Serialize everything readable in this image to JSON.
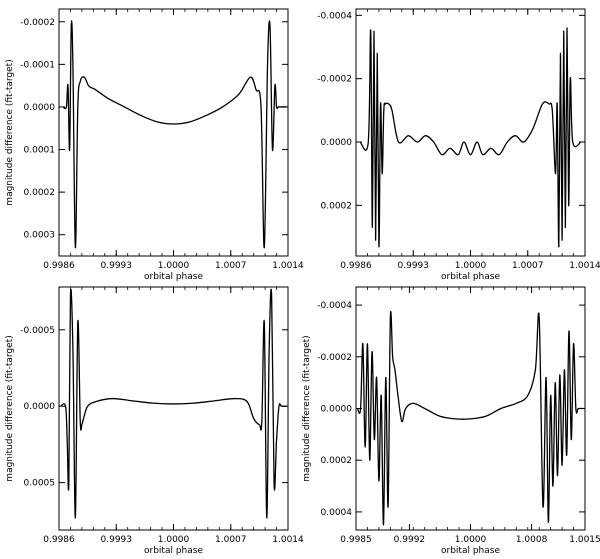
{
  "chart_data": [
    {
      "type": "line",
      "xlabel": "orbital phase",
      "ylabel": "magnitude difference (fit-target)",
      "xlim": [
        0.9986,
        1.0014
      ],
      "ylim": [
        0.00035,
        -0.00023
      ],
      "y_inverted": true,
      "xticks": [
        "0.9986",
        "0.9993",
        "1.0000",
        "1.0007",
        "1.0014"
      ],
      "xtick_values": [
        0.9986,
        0.9993,
        1.0,
        1.0007,
        1.0014
      ],
      "yticks": [
        "-0.0002",
        "-0.0001",
        "0.0000",
        "0.0001",
        "0.0002",
        "0.0003"
      ],
      "ytick_values": [
        -0.0002,
        -0.0001,
        0.0,
        0.0001,
        0.0002,
        0.0003
      ],
      "series": [
        {
          "x": [
            0.99865,
            0.99869,
            0.99871,
            0.99873,
            0.99875,
            0.99877,
            0.9988,
            0.99883,
            0.99886,
            0.99891,
            0.99896,
            0.999,
            0.99905,
            0.9992,
            0.9994,
            0.9996,
            0.9998,
            1.0,
            1.0002,
            1.0004,
            1.0006,
            1.0008,
            1.00094,
            1.00101,
            1.00107,
            1.00111,
            1.00115,
            1.00118,
            1.00121,
            1.00124,
            1.00126,
            1.00128,
            1.0013,
            1.00133,
            1.00138
          ],
          "y": [
            0.0,
            0.0,
            -5e-05,
            0.0001,
            -0.00019,
            -0.0001,
            0.00033,
            0.0,
            -6e-05,
            -7e-05,
            -5e-05,
            -4.5e-05,
            -4e-05,
            -2e-05,
            0.0,
            2e-05,
            3.5e-05,
            4e-05,
            3.5e-05,
            2e-05,
            0.0,
            -3e-05,
            -7e-05,
            -4e-05,
            0.0,
            0.00033,
            -0.0001,
            -0.00019,
            0.0001,
            -5e-05,
            0.0,
            0.0,
            0.0,
            0.0,
            0.0
          ]
        }
      ]
    },
    {
      "type": "line",
      "xlabel": "orbital phase",
      "ylabel": "",
      "xlim": [
        0.9986,
        1.0014
      ],
      "ylim": [
        0.00036,
        -0.00042
      ],
      "y_inverted": true,
      "xticks": [
        "0.9986",
        "0.9993",
        "1.0000",
        "1.0007",
        "1.0014"
      ],
      "xtick_values": [
        0.9986,
        0.9993,
        1.0,
        1.0007,
        1.0014
      ],
      "yticks": [
        "-0.0004",
        "-0.0002",
        "0.0000",
        "0.0002"
      ],
      "ytick_values": [
        -0.0004,
        -0.0002,
        0.0,
        0.0002
      ],
      "series": [
        {
          "x": [
            0.99865,
            0.99875,
            0.99878,
            0.9988,
            0.99882,
            0.99884,
            0.99886,
            0.99888,
            0.9989,
            0.99892,
            0.99894,
            0.99896,
            0.999,
            0.99904,
            0.99912,
            0.99924,
            0.99935,
            0.99945,
            0.99955,
            0.99965,
            0.99975,
            0.99985,
            0.99992,
            1.0,
            1.00008,
            1.00015,
            1.00025,
            1.00035,
            1.00045,
            1.00055,
            1.00065,
            1.00076,
            1.00088,
            1.00096,
            1.001,
            1.00104,
            1.00106,
            1.00108,
            1.0011,
            1.00112,
            1.00114,
            1.00116,
            1.00118,
            1.0012,
            1.00122,
            1.00125,
            1.00135
          ],
          "y": [
            0.0,
            0.0,
            -0.00035,
            0.00027,
            -0.00035,
            0.00031,
            -0.00028,
            0.00033,
            -0.00012,
            0.0001,
            -0.0001,
            -0.00012,
            -0.00012,
            -0.0001,
            0.0,
            -2e-05,
            0.0,
            -2e-05,
            0.0,
            4e-05,
            2e-05,
            4e-05,
            0.0,
            4e-05,
            0.0,
            4e-05,
            2e-05,
            4e-05,
            0.0,
            -2e-05,
            0.0,
            -4e-05,
            -0.00012,
            -0.00012,
            -0.0001,
            0.0001,
            -0.00012,
            0.00033,
            -0.00028,
            0.00031,
            -0.00035,
            0.00027,
            -0.00036,
            0.0002,
            -0.0002,
            0.0,
            0.0
          ]
        }
      ]
    },
    {
      "type": "line",
      "xlabel": "orbital phase",
      "ylabel": "magnitude difference (fit-target)",
      "xlim": [
        0.9986,
        1.0014
      ],
      "ylim": [
        0.00081,
        -0.00078
      ],
      "y_inverted": true,
      "xticks": [
        "0.9986",
        "0.9993",
        "1.0000",
        "1.0007",
        "1.0014"
      ],
      "xtick_values": [
        0.9986,
        0.9993,
        1.0,
        1.0007,
        1.0014
      ],
      "yticks": [
        "-0.0005",
        "0.0000",
        "0.0005"
      ],
      "ytick_values": [
        -0.0005,
        0.0,
        0.0005
      ],
      "series": [
        {
          "x": [
            0.99862,
            0.99868,
            0.9987,
            0.99872,
            0.99874,
            0.99877,
            0.9988,
            0.99883,
            0.99886,
            0.99888,
            0.9989,
            0.99895,
            0.99905,
            0.99925,
            0.9995,
            0.99975,
            1.0,
            1.00025,
            1.0005,
            1.00075,
            1.0009,
            1.00098,
            1.00105,
            1.00108,
            1.00111,
            1.00114,
            1.00117,
            1.0012,
            1.00123,
            1.00126,
            1.00129,
            1.00132,
            1.00138
          ],
          "y": [
            0.0,
            0.0,
            0.00022,
            0.00051,
            -0.00072,
            -0.00038,
            0.00073,
            -0.00055,
            0.0001,
            0.00012,
            8e-05,
            0.0,
            -3e-05,
            -5e-05,
            -3.5e-05,
            -2e-05,
            -1.5e-05,
            -2e-05,
            -3.5e-05,
            -5e-05,
            -3e-05,
            8e-05,
            0.00012,
            0.0001,
            -0.00055,
            0.00073,
            -0.00038,
            -0.00072,
            0.00051,
            0.00022,
            0.0,
            0.0,
            0.0
          ]
        }
      ]
    },
    {
      "type": "line",
      "xlabel": "orbital phase",
      "ylabel": "magnitude difference (fit-target)",
      "xlim": [
        0.9985,
        1.0015
      ],
      "ylim": [
        0.00047,
        -0.00047
      ],
      "y_inverted": true,
      "xticks": [
        "0.9985",
        "0.9992",
        "1.0000",
        "1.0008",
        "1.0015"
      ],
      "xtick_values": [
        0.9985,
        0.9992,
        1.0,
        1.0008,
        1.0015
      ],
      "yticks": [
        "-0.0004",
        "-0.0002",
        "0.0000",
        "0.0002",
        "0.0004"
      ],
      "ytick_values": [
        -0.0004,
        -0.0002,
        0.0,
        0.0002,
        0.0004
      ],
      "series": [
        {
          "x": [
            0.99852,
            0.99856,
            0.99859,
            0.99862,
            0.99865,
            0.99868,
            0.99871,
            0.99874,
            0.99877,
            0.9988,
            0.99883,
            0.99886,
            0.99889,
            0.99892,
            0.99895,
            0.99898,
            0.99901,
            0.99905,
            0.9991,
            0.99915,
            0.99925,
            0.9994,
            0.9996,
            0.9998,
            1.0,
            1.0002,
            1.0004,
            1.0006,
            1.00075,
            1.00085,
            1.0009,
            1.00095,
            1.00099,
            1.00102,
            1.00105,
            1.00108,
            1.00111,
            1.00114,
            1.00117,
            1.0012,
            1.00123,
            1.00126,
            1.00129,
            1.00132,
            1.00135,
            1.00138,
            1.00141,
            1.00144,
            1.00148
          ],
          "y": [
            0.0,
            0.0,
            -0.00025,
            0.00015,
            -0.00025,
            0.0002,
            -0.00022,
            0.00012,
            -0.00012,
            0.00028,
            -5e-05,
            0.00045,
            -0.00012,
            0.00038,
            -0.00035,
            -0.0002,
            -0.00015,
            -5e-05,
            5e-05,
            0.0,
            -2e-05,
            0.0,
            3e-05,
            4e-05,
            4e-05,
            3e-05,
            0.0,
            -2e-05,
            -5e-05,
            -0.00015,
            -0.00035,
            0.00038,
            -0.00012,
            0.00044,
            -5e-05,
            0.0003,
            -0.0001,
            0.00026,
            -0.00013,
            0.00022,
            -0.00015,
            0.00018,
            -0.0003,
            0.00012,
            -0.00025,
            0.0,
            0.0,
            0.0,
            0.0
          ]
        }
      ]
    }
  ]
}
